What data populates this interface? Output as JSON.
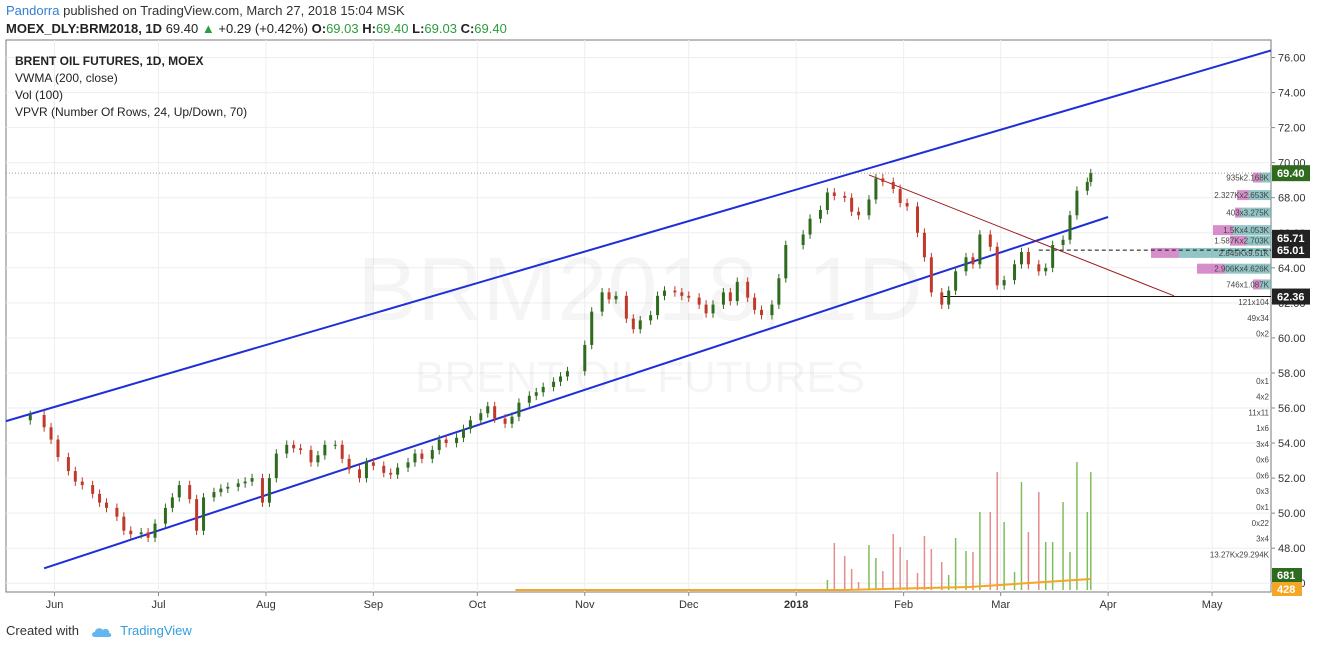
{
  "header": {
    "author": "Pandorra",
    "published_text": " published on TradingView.com, March 27, 2018 15:04 MSK",
    "symbol": "MOEX_DLY:BRM2018, 1D",
    "price": "69.40",
    "change": "+0.29 (+0.42%)",
    "o_label": "O:",
    "o_value": "69.03",
    "h_label": "H:",
    "h_value": "69.40",
    "l_label": "L:",
    "l_value": "69.03",
    "c_label": "C:",
    "c_value": "69.40"
  },
  "legend": {
    "line1": "BRENT OIL FUTURES, 1D, MOEX",
    "line2": "VWMA (200, close)",
    "line3": "Vol (100)",
    "line4": "VPVR (Number Of Rows, 24, Up/Down, 70)"
  },
  "watermark": {
    "big": "BRM2018, 1D",
    "small": "BRENT OIL FUTURES"
  },
  "footer": {
    "created_with": "Created with",
    "brand": "TradingView"
  },
  "colors": {
    "up": "#2e6b1f",
    "down": "#c0392b",
    "channel": "#1f2fd8",
    "downtrend": "#9b1c1c",
    "vwma": "#f5a623",
    "vol_up": "#7fbf5a",
    "vol_down": "#e58c8c",
    "vp_up": "#6db3b3",
    "vp_down": "#c86ab8",
    "price_bg": "#2e6b1f"
  },
  "chart_data": {
    "type": "candlestick",
    "y_ticks": [
      "76.00",
      "74.00",
      "72.00",
      "70.00",
      "68.00",
      "66.00",
      "64.00",
      "62.00",
      "60.00",
      "58.00",
      "56.00",
      "54.00",
      "52.00",
      "50.00",
      "48.00",
      "46.00"
    ],
    "ylim": [
      45.5,
      77
    ],
    "x_ticks": [
      {
        "label": "Jun",
        "date": "2017-06-01"
      },
      {
        "label": "Jul",
        "date": "2017-07-01"
      },
      {
        "label": "Aug",
        "date": "2017-08-01"
      },
      {
        "label": "Sep",
        "date": "2017-09-01"
      },
      {
        "label": "Oct",
        "date": "2017-10-01"
      },
      {
        "label": "Nov",
        "date": "2017-11-01"
      },
      {
        "label": "Dec",
        "date": "2017-12-01"
      },
      {
        "label": "2018",
        "date": "2018-01-01"
      },
      {
        "label": "Feb",
        "date": "2018-02-01"
      },
      {
        "label": "Mar",
        "date": "2018-03-01"
      },
      {
        "label": "Apr",
        "date": "2018-04-01"
      },
      {
        "label": "May",
        "date": "2018-05-01"
      }
    ],
    "xlim": [
      "2017-05-18",
      "2018-05-18"
    ],
    "price_tags": [
      {
        "value": "69.40",
        "y": 69.4,
        "bg": "#2e6b1f",
        "fg": "#ffffff"
      },
      {
        "value": "65.71",
        "y": 65.71,
        "bg": "#222222",
        "fg": "#ffffff"
      },
      {
        "value": "65.01",
        "y": 65.01,
        "bg": "#222222",
        "fg": "#ffffff"
      },
      {
        "value": "62.36",
        "y": 62.36,
        "bg": "#222222",
        "fg": "#ffffff"
      }
    ],
    "volume_tags": [
      {
        "value": "681",
        "bg": "#2e6b1f",
        "fg": "#ffffff"
      },
      {
        "value": "428",
        "bg": "#f5a623",
        "fg": "#ffffff"
      }
    ],
    "closes": [
      [
        "2017-05-25",
        55.6
      ],
      [
        "2017-05-29",
        54.9
      ],
      [
        "2017-05-31",
        54.2
      ],
      [
        "2017-06-02",
        53.2
      ],
      [
        "2017-06-05",
        52.4
      ],
      [
        "2017-06-07",
        51.8
      ],
      [
        "2017-06-09",
        51.6
      ],
      [
        "2017-06-12",
        51.1
      ],
      [
        "2017-06-14",
        50.6
      ],
      [
        "2017-06-16",
        50.3
      ],
      [
        "2017-06-19",
        49.8
      ],
      [
        "2017-06-21",
        49.0
      ],
      [
        "2017-06-23",
        48.8
      ],
      [
        "2017-06-26",
        48.9
      ],
      [
        "2017-06-28",
        48.6
      ],
      [
        "2017-06-30",
        49.4
      ],
      [
        "2017-07-03",
        50.3
      ],
      [
        "2017-07-05",
        50.9
      ],
      [
        "2017-07-07",
        51.6
      ],
      [
        "2017-07-10",
        50.8
      ],
      [
        "2017-07-12",
        49.0
      ],
      [
        "2017-07-14",
        50.9
      ],
      [
        "2017-07-17",
        51.2
      ],
      [
        "2017-07-19",
        51.4
      ],
      [
        "2017-07-21",
        51.5
      ],
      [
        "2017-07-24",
        51.7
      ],
      [
        "2017-07-26",
        51.8
      ],
      [
        "2017-07-28",
        52.0
      ],
      [
        "2017-07-31",
        50.6
      ],
      [
        "2017-08-02",
        52.0
      ],
      [
        "2017-08-04",
        53.4
      ],
      [
        "2017-08-07",
        53.9
      ],
      [
        "2017-08-09",
        53.7
      ],
      [
        "2017-08-11",
        53.6
      ],
      [
        "2017-08-14",
        52.9
      ],
      [
        "2017-08-16",
        53.3
      ],
      [
        "2017-08-18",
        53.9
      ],
      [
        "2017-08-21",
        53.9
      ],
      [
        "2017-08-23",
        53.1
      ],
      [
        "2017-08-25",
        52.5
      ],
      [
        "2017-08-28",
        52.0
      ],
      [
        "2017-08-30",
        52.9
      ],
      [
        "2017-09-01",
        52.7
      ],
      [
        "2017-09-04",
        52.3
      ],
      [
        "2017-09-06",
        52.2
      ],
      [
        "2017-09-08",
        52.6
      ],
      [
        "2017-09-11",
        52.9
      ],
      [
        "2017-09-13",
        53.4
      ],
      [
        "2017-09-15",
        53.1
      ],
      [
        "2017-09-18",
        53.6
      ],
      [
        "2017-09-20",
        54.2
      ],
      [
        "2017-09-22",
        54.0
      ],
      [
        "2017-09-25",
        54.3
      ],
      [
        "2017-09-27",
        54.8
      ],
      [
        "2017-09-29",
        55.3
      ],
      [
        "2017-10-02",
        55.7
      ],
      [
        "2017-10-04",
        56.1
      ],
      [
        "2017-10-06",
        55.4
      ],
      [
        "2017-10-09",
        55.1
      ],
      [
        "2017-10-11",
        55.5
      ],
      [
        "2017-10-13",
        56.3
      ],
      [
        "2017-10-16",
        56.7
      ],
      [
        "2017-10-18",
        56.9
      ],
      [
        "2017-10-20",
        57.2
      ],
      [
        "2017-10-23",
        57.5
      ],
      [
        "2017-10-25",
        57.8
      ],
      [
        "2017-10-27",
        58.1
      ],
      [
        "2017-11-01",
        59.6
      ],
      [
        "2017-11-03",
        61.5
      ],
      [
        "2017-11-06",
        62.6
      ],
      [
        "2017-11-08",
        62.2
      ],
      [
        "2017-11-10",
        62.4
      ],
      [
        "2017-11-13",
        61.1
      ],
      [
        "2017-11-15",
        60.5
      ],
      [
        "2017-11-17",
        61.0
      ],
      [
        "2017-11-20",
        61.3
      ],
      [
        "2017-11-22",
        62.4
      ],
      [
        "2017-11-24",
        62.7
      ],
      [
        "2017-11-27",
        62.6
      ],
      [
        "2017-11-29",
        62.4
      ],
      [
        "2017-12-01",
        62.3
      ],
      [
        "2017-12-04",
        61.9
      ],
      [
        "2017-12-06",
        61.4
      ],
      [
        "2017-12-08",
        61.9
      ],
      [
        "2017-12-11",
        62.6
      ],
      [
        "2017-12-13",
        62.1
      ],
      [
        "2017-12-15",
        63.2
      ],
      [
        "2017-12-18",
        62.3
      ],
      [
        "2017-12-20",
        61.6
      ],
      [
        "2017-12-22",
        61.3
      ],
      [
        "2017-12-25",
        61.9
      ],
      [
        "2017-12-27",
        63.4
      ],
      [
        "2017-12-29",
        65.3
      ],
      [
        "2018-01-03",
        65.9
      ],
      [
        "2018-01-05",
        66.8
      ],
      [
        "2018-01-08",
        67.3
      ],
      [
        "2018-01-10",
        68.3
      ],
      [
        "2018-01-12",
        68.1
      ],
      [
        "2018-01-15",
        68.0
      ],
      [
        "2018-01-17",
        67.2
      ],
      [
        "2018-01-19",
        67.0
      ],
      [
        "2018-01-22",
        67.9
      ],
      [
        "2018-01-24",
        69.1
      ],
      [
        "2018-01-26",
        68.9
      ],
      [
        "2018-01-29",
        68.5
      ],
      [
        "2018-01-31",
        67.7
      ],
      [
        "2018-02-02",
        67.5
      ],
      [
        "2018-02-05",
        66.0
      ],
      [
        "2018-02-07",
        64.6
      ],
      [
        "2018-02-09",
        62.6
      ],
      [
        "2018-02-12",
        61.9
      ],
      [
        "2018-02-14",
        62.7
      ],
      [
        "2018-02-16",
        63.8
      ],
      [
        "2018-02-19",
        64.6
      ],
      [
        "2018-02-21",
        64.2
      ],
      [
        "2018-02-23",
        65.9
      ],
      [
        "2018-02-26",
        65.2
      ],
      [
        "2018-02-28",
        63.0
      ],
      [
        "2018-03-02",
        63.3
      ],
      [
        "2018-03-05",
        64.2
      ],
      [
        "2018-03-07",
        64.9
      ],
      [
        "2018-03-09",
        64.2
      ],
      [
        "2018-03-12",
        63.8
      ],
      [
        "2018-03-14",
        64.0
      ],
      [
        "2018-03-16",
        65.3
      ],
      [
        "2018-03-19",
        65.6
      ],
      [
        "2018-03-21",
        67.0
      ],
      [
        "2018-03-23",
        68.4
      ],
      [
        "2018-03-26",
        68.9
      ],
      [
        "2018-03-27",
        69.4
      ]
    ],
    "profile_labels": [
      {
        "y": 69.15,
        "text": "935k2.168K"
      },
      {
        "y": 68.15,
        "text": "2.327Kx2.653K"
      },
      {
        "y": 67.15,
        "text": "403x3.275K"
      },
      {
        "y": 66.15,
        "text": "1.5Kx4.053K"
      },
      {
        "y": 65.55,
        "text": "1.587Kx2.703K"
      },
      {
        "y": 64.85,
        "text": "2.845Kx9.51K"
      },
      {
        "y": 63.95,
        "text": "2.906Kx4.626K"
      },
      {
        "y": 63.05,
        "text": "746x1.087K"
      },
      {
        "y": 62.05,
        "text": "121x104"
      },
      {
        "y": 61.15,
        "text": "49x34"
      },
      {
        "y": 60.25,
        "text": "0x2"
      },
      {
        "y": 57.55,
        "text": "0x1"
      },
      {
        "y": 56.65,
        "text": "4x2"
      },
      {
        "y": 55.75,
        "text": "11x11"
      },
      {
        "y": 54.85,
        "text": "1x6"
      },
      {
        "y": 53.95,
        "text": "3x4"
      },
      {
        "y": 53.05,
        "text": "0x6"
      },
      {
        "y": 52.15,
        "text": "0x6"
      },
      {
        "y": 51.25,
        "text": "0x3"
      },
      {
        "y": 50.35,
        "text": "0x1"
      },
      {
        "y": 49.45,
        "text": "0x22"
      },
      {
        "y": 48.55,
        "text": "3x4"
      },
      {
        "y": 47.65,
        "text": "13.27Kx29.294K"
      }
    ]
  }
}
